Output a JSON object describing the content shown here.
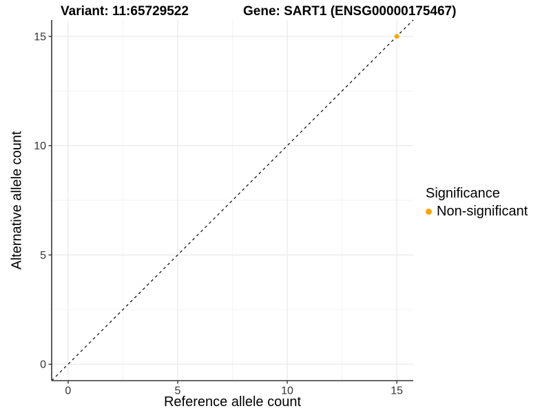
{
  "header": {
    "variant_title": "Variant: 11:65729522",
    "gene_title": "Gene: SART1 (ENSG00000175467)"
  },
  "axes": {
    "x_label": "Reference allele count",
    "y_label": "Alternative allele count"
  },
  "legend": {
    "title": "Significance",
    "items": [
      {
        "label": "Non-significant",
        "color": "#FFA500",
        "marker": "dot-icon"
      }
    ]
  },
  "colors": {
    "background": "#ffffff",
    "axis_line": "#333333",
    "tick_label": "#333333",
    "grid_major": "#e7e7e7",
    "grid_minor": "#f2f2f2",
    "identity_line": "#000000",
    "point_nonsignificant": "#FFA500"
  },
  "chart_data": {
    "type": "scatter",
    "title": "Variant: 11:65729522   Gene: SART1 (ENSG00000175467)",
    "xlabel": "Reference allele count",
    "ylabel": "Alternative allele count",
    "xlim": [
      -0.75,
      15.75
    ],
    "ylim": [
      -0.75,
      15.75
    ],
    "x_ticks": [
      0,
      5,
      10,
      15
    ],
    "y_ticks": [
      0,
      5,
      10,
      15
    ],
    "x_minor_ticks": [
      2.5,
      7.5,
      12.5
    ],
    "y_minor_ticks": [
      2.5,
      7.5,
      12.5
    ],
    "grid": true,
    "legend_position": "right",
    "series": [
      {
        "name": "Non-significant",
        "color": "#FFA500",
        "points": [
          {
            "x": 15,
            "y": 15
          }
        ]
      }
    ],
    "reference_line": {
      "type": "identity",
      "slope": 1,
      "intercept": 0,
      "linestyle": "dashed",
      "color": "#000000"
    }
  }
}
